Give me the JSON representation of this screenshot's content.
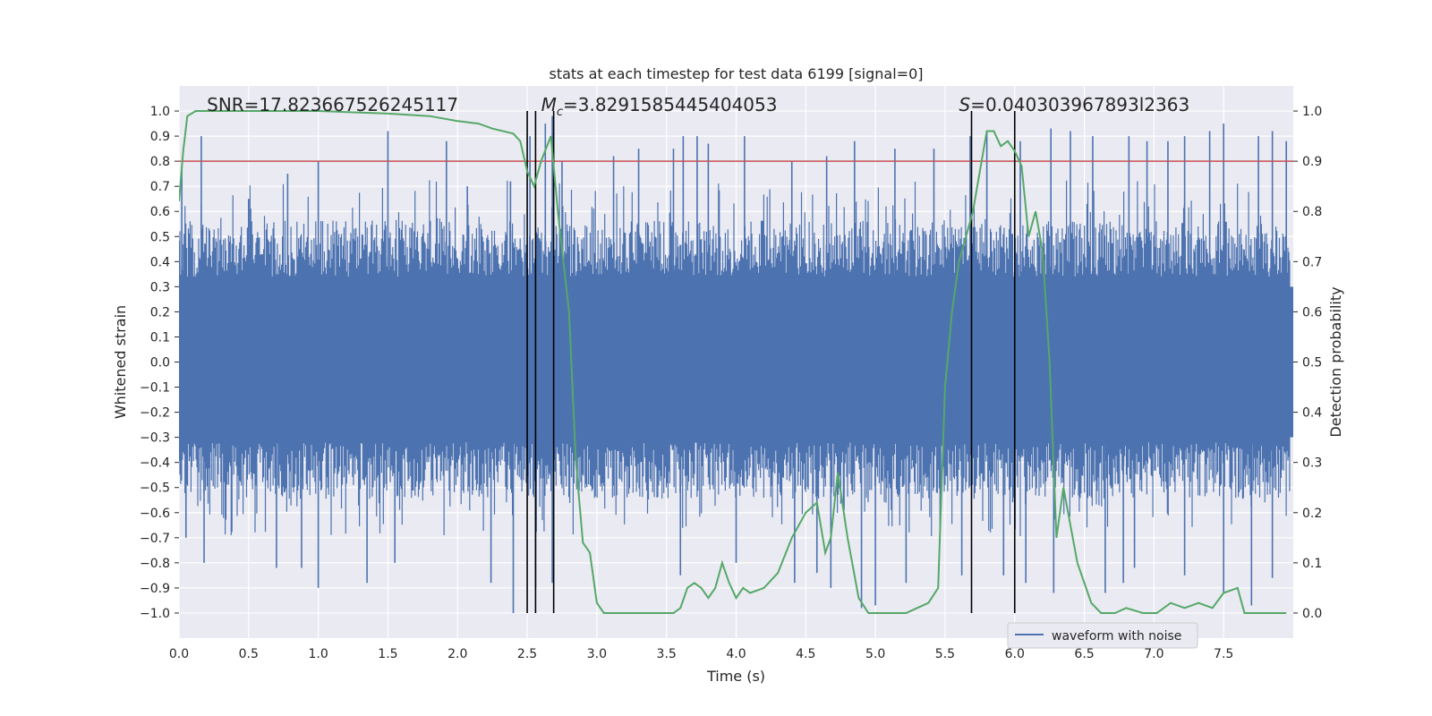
{
  "chart_data": {
    "type": "line",
    "title": "stats at each timestep for test data 6199 [signal=0]",
    "xlabel": "Time (s)",
    "ylabel": "Whitened strain",
    "ylabel_right": "Detection probability",
    "xlim": [
      0.0,
      8.0
    ],
    "ylim": [
      -1.1,
      1.1
    ],
    "ylim_right": [
      -0.05,
      1.05
    ],
    "xticks": [
      "0.0",
      "0.5",
      "1.0",
      "1.5",
      "2.0",
      "2.5",
      "3.0",
      "3.5",
      "4.0",
      "4.5",
      "5.0",
      "5.5",
      "6.0",
      "6.5",
      "7.0",
      "7.5"
    ],
    "yticks": [
      "1.0",
      "0.9",
      "0.8",
      "0.7",
      "0.6",
      "0.5",
      "0.4",
      "0.3",
      "0.2",
      "0.1",
      "0.0",
      "-0.1",
      "-0.2",
      "-0.3",
      "-0.4",
      "-0.5",
      "-0.6",
      "-0.7",
      "-0.8",
      "-0.9",
      "-1.0"
    ],
    "yticks_right": [
      "1.0",
      "0.9",
      "0.8",
      "0.7",
      "0.6",
      "0.5",
      "0.4",
      "0.3",
      "0.2",
      "0.1",
      "0.0"
    ],
    "annotations": {
      "snr": "SNR=17.823667526245117",
      "mc_symbol": "M",
      "mc_sub": "c",
      "mc_value": "=3.8291585445404053",
      "s_symbol": "S",
      "s_value": "=0.040303967893l2363"
    },
    "threshold": {
      "value": 0.9,
      "color": "#c44e52"
    },
    "vertical_lines": [
      2.5,
      2.56,
      2.69,
      5.69,
      6.0
    ],
    "legend": {
      "label": "waveform with noise",
      "position": "lower-right"
    },
    "series": [
      {
        "name": "waveform with noise",
        "color": "#4c72b0",
        "envelope_note": "dense noisy strain, core band approx ±0.4 with spikes to ±1.0",
        "spikes_top": [
          [
            0.02,
            0.78
          ],
          [
            0.16,
            0.9
          ],
          [
            0.5,
            0.65
          ],
          [
            0.78,
            0.75
          ],
          [
            1.0,
            0.8
          ],
          [
            1.5,
            0.92
          ],
          [
            1.92,
            0.88
          ],
          [
            2.07,
            0.7
          ],
          [
            2.38,
            0.72
          ],
          [
            2.52,
            0.9
          ],
          [
            2.63,
            0.95
          ],
          [
            2.68,
            0.98
          ],
          [
            2.75,
            0.8
          ],
          [
            3.12,
            0.82
          ],
          [
            3.3,
            0.85
          ],
          [
            3.55,
            0.85
          ],
          [
            3.62,
            0.9
          ],
          [
            3.72,
            0.9
          ],
          [
            3.8,
            0.87
          ],
          [
            4.06,
            0.9
          ],
          [
            4.4,
            0.8
          ],
          [
            4.65,
            0.82
          ],
          [
            4.85,
            0.88
          ],
          [
            5.14,
            0.85
          ],
          [
            5.42,
            0.85
          ],
          [
            5.68,
            0.9
          ],
          [
            5.8,
            0.92
          ],
          [
            6.04,
            0.88
          ],
          [
            6.26,
            0.93
          ],
          [
            6.4,
            0.92
          ],
          [
            6.56,
            0.9
          ],
          [
            6.82,
            0.9
          ],
          [
            6.95,
            0.88
          ],
          [
            7.1,
            0.88
          ],
          [
            7.22,
            0.9
          ],
          [
            7.4,
            0.92
          ],
          [
            7.5,
            0.95
          ],
          [
            7.75,
            0.9
          ],
          [
            7.85,
            0.92
          ],
          [
            7.95,
            0.88
          ]
        ],
        "spikes_bottom": [
          [
            0.05,
            -0.7
          ],
          [
            0.18,
            -0.8
          ],
          [
            0.7,
            -0.82
          ],
          [
            0.88,
            -0.82
          ],
          [
            1.0,
            -0.9
          ],
          [
            1.35,
            -0.88
          ],
          [
            1.55,
            -0.8
          ],
          [
            2.24,
            -0.88
          ],
          [
            2.4,
            -1.0
          ],
          [
            2.56,
            -0.9
          ],
          [
            2.68,
            -0.88
          ],
          [
            3.6,
            -0.85
          ],
          [
            4.0,
            -0.8
          ],
          [
            4.42,
            -0.88
          ],
          [
            4.58,
            -0.84
          ],
          [
            4.68,
            -0.9
          ],
          [
            4.9,
            -0.98
          ],
          [
            5.0,
            -0.97
          ],
          [
            5.22,
            -0.88
          ],
          [
            5.62,
            -0.85
          ],
          [
            5.92,
            -0.85
          ],
          [
            6.08,
            -0.88
          ],
          [
            6.28,
            -0.92
          ],
          [
            6.65,
            -0.92
          ],
          [
            6.78,
            -0.88
          ],
          [
            6.86,
            -0.82
          ],
          [
            7.22,
            -0.85
          ],
          [
            7.5,
            -0.92
          ],
          [
            7.7,
            -0.97
          ],
          [
            7.85,
            -0.86
          ]
        ]
      },
      {
        "name": "Detection probability",
        "axis": "right",
        "color": "#55a868",
        "x": [
          0.0,
          0.03,
          0.06,
          0.12,
          0.3,
          0.6,
          1.0,
          1.5,
          1.8,
          2.0,
          2.15,
          2.25,
          2.4,
          2.45,
          2.5,
          2.55,
          2.6,
          2.67,
          2.72,
          2.8,
          2.85,
          2.9,
          2.95,
          3.0,
          3.05,
          3.15,
          3.25,
          3.35,
          3.45,
          3.55,
          3.6,
          3.65,
          3.7,
          3.75,
          3.8,
          3.85,
          3.9,
          3.95,
          4.0,
          4.05,
          4.1,
          4.2,
          4.3,
          4.4,
          4.5,
          4.58,
          4.64,
          4.68,
          4.73,
          4.8,
          4.88,
          4.95,
          5.05,
          5.15,
          5.22,
          5.3,
          5.38,
          5.45,
          5.5,
          5.55,
          5.6,
          5.65,
          5.7,
          5.75,
          5.8,
          5.85,
          5.9,
          5.95,
          6.0,
          6.05,
          6.1,
          6.15,
          6.2,
          6.25,
          6.3,
          6.35,
          6.45,
          6.55,
          6.62,
          6.72,
          6.8,
          6.92,
          7.02,
          7.12,
          7.22,
          7.32,
          7.42,
          7.5,
          7.6,
          7.65,
          7.8,
          7.95
        ],
        "values": [
          0.82,
          0.92,
          0.99,
          1.0,
          1.0,
          1.0,
          1.0,
          0.995,
          0.99,
          0.98,
          0.975,
          0.965,
          0.955,
          0.94,
          0.88,
          0.85,
          0.9,
          0.95,
          0.8,
          0.6,
          0.3,
          0.14,
          0.12,
          0.02,
          0.0,
          0.0,
          0.0,
          0.0,
          0.0,
          0.0,
          0.01,
          0.05,
          0.06,
          0.05,
          0.03,
          0.05,
          0.1,
          0.06,
          0.03,
          0.05,
          0.04,
          0.05,
          0.08,
          0.15,
          0.2,
          0.22,
          0.12,
          0.15,
          0.28,
          0.15,
          0.03,
          0.0,
          0.0,
          0.0,
          0.0,
          0.01,
          0.02,
          0.05,
          0.45,
          0.6,
          0.7,
          0.75,
          0.8,
          0.88,
          0.96,
          0.96,
          0.93,
          0.94,
          0.92,
          0.89,
          0.75,
          0.8,
          0.72,
          0.5,
          0.15,
          0.25,
          0.1,
          0.02,
          0.0,
          0.0,
          0.01,
          0.0,
          0.0,
          0.02,
          0.01,
          0.02,
          0.01,
          0.04,
          0.05,
          0.0,
          0.0,
          0.0
        ]
      }
    ]
  }
}
